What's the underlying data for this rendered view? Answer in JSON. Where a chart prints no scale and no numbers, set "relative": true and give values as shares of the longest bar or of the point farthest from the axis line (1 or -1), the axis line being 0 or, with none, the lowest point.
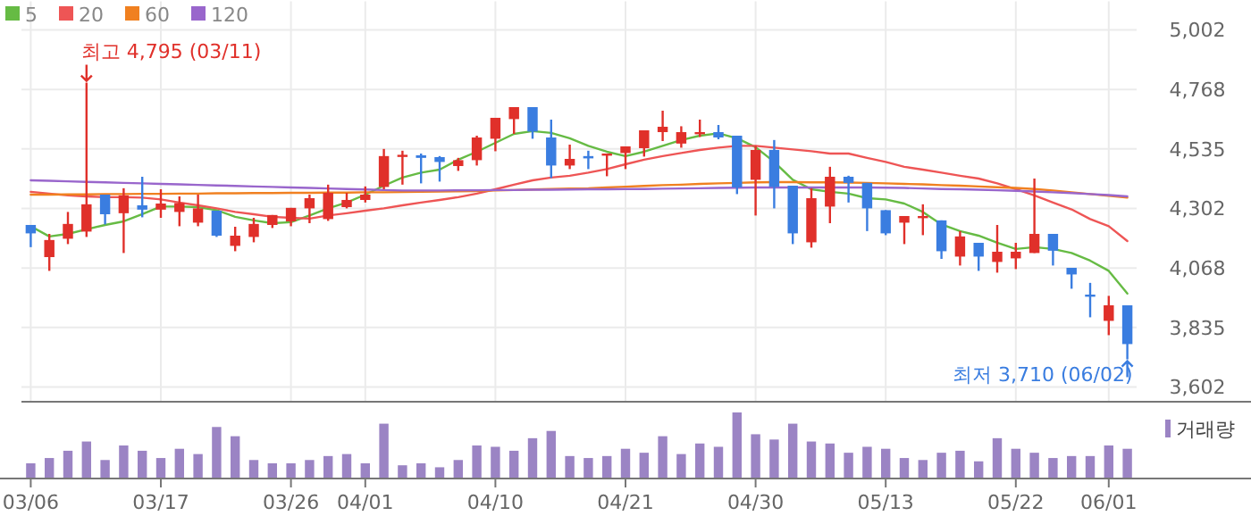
{
  "chart_data": [
    {
      "type": "candlestick",
      "categories": [
        null,
        null,
        null,
        null,
        null,
        null,
        null,
        null,
        null,
        null,
        null,
        null,
        null,
        null,
        null,
        null,
        null,
        null,
        null,
        null,
        null,
        null,
        null,
        null,
        null,
        null,
        null,
        null,
        null,
        null,
        null,
        null,
        null,
        null,
        null,
        null,
        null,
        null,
        null,
        null,
        null,
        null,
        null,
        null,
        null,
        null,
        null,
        null,
        null,
        null,
        null,
        null,
        null,
        null,
        null,
        null,
        null,
        null,
        null,
        null
      ],
      "ohlc": [
        [
          4237,
          4237,
          4150,
          4204
        ],
        [
          4111,
          4202,
          4057,
          4178
        ],
        [
          4183,
          4288,
          4162,
          4241
        ],
        [
          4211,
          4795,
          4190,
          4318
        ],
        [
          4356,
          4356,
          4239,
          4279
        ],
        [
          4283,
          4381,
          4127,
          4353
        ],
        [
          4314,
          4426,
          4267,
          4297
        ],
        [
          4297,
          4377,
          4265,
          4321
        ],
        [
          4288,
          4349,
          4232,
          4323
        ],
        [
          4246,
          4356,
          4232,
          4302
        ],
        [
          4293,
          4293,
          4190,
          4195
        ],
        [
          4155,
          4230,
          4134,
          4195
        ],
        [
          4190,
          4265,
          4169,
          4241
        ],
        [
          4237,
          4276,
          4225,
          4276
        ],
        [
          4251,
          4304,
          4232,
          4304
        ],
        [
          4302,
          4356,
          4244,
          4342
        ],
        [
          4260,
          4395,
          4253,
          4363
        ],
        [
          4307,
          4363,
          4302,
          4335
        ],
        [
          4335,
          4388,
          4325,
          4356
        ],
        [
          4386,
          4535,
          4377,
          4507
        ],
        [
          4507,
          4528,
          4395,
          4512
        ],
        [
          4510,
          4517,
          4400,
          4500
        ],
        [
          4503,
          4507,
          4407,
          4484
        ],
        [
          4468,
          4500,
          4449,
          4491
        ],
        [
          4491,
          4587,
          4470,
          4580
        ],
        [
          4575,
          4657,
          4526,
          4657
        ],
        [
          4652,
          4699,
          4594,
          4699
        ],
        [
          4699,
          4699,
          4575,
          4603
        ],
        [
          4580,
          4650,
          4421,
          4470
        ],
        [
          4470,
          4552,
          4456,
          4496
        ],
        [
          4507,
          4528,
          4456,
          4498
        ],
        [
          4512,
          4517,
          4428,
          4517
        ],
        [
          4519,
          4545,
          4456,
          4545
        ],
        [
          4538,
          4608,
          4505,
          4608
        ],
        [
          4601,
          4685,
          4566,
          4622
        ],
        [
          4556,
          4624,
          4540,
          4601
        ],
        [
          4594,
          4650,
          4582,
          4601
        ],
        [
          4601,
          4629,
          4573,
          4580
        ],
        [
          4587,
          4587,
          4358,
          4384
        ],
        [
          4414,
          4547,
          4274,
          4531
        ],
        [
          4531,
          4570,
          4302,
          4386
        ],
        [
          4391,
          4391,
          4162,
          4204
        ],
        [
          4169,
          4381,
          4148,
          4342
        ],
        [
          4309,
          4465,
          4244,
          4426
        ],
        [
          4426,
          4430,
          4325,
          4402
        ],
        [
          4402,
          4402,
          4213,
          4302
        ],
        [
          4295,
          4295,
          4197,
          4204
        ],
        [
          4246,
          4272,
          4162,
          4272
        ],
        [
          4267,
          4318,
          4197,
          4272
        ],
        [
          4255,
          4255,
          4104,
          4134
        ],
        [
          4113,
          4213,
          4078,
          4192
        ],
        [
          4167,
          4167,
          4057,
          4113
        ],
        [
          4092,
          4237,
          4050,
          4132
        ],
        [
          4106,
          4167,
          4064,
          4132
        ],
        [
          4127,
          4419,
          4127,
          4202
        ],
        [
          4202,
          4202,
          4078,
          4136
        ],
        [
          4069,
          4069,
          3987,
          4043
        ],
        [
          3964,
          4010,
          3875,
          3957
        ],
        [
          3861,
          3959,
          3805,
          3922
        ],
        [
          3922,
          3922,
          3710,
          3770
        ]
      ],
      "colors": [
        "#3a7de0",
        "#e0302a",
        "#e0302a",
        "#e0302a",
        "#3a7de0",
        "#e0302a",
        "#3a7de0",
        "#e0302a",
        "#e0302a",
        "#e0302a",
        "#3a7de0",
        "#e0302a",
        "#e0302a",
        "#e0302a",
        "#e0302a",
        "#e0302a",
        "#e0302a",
        "#e0302a",
        "#e0302a",
        "#e0302a",
        "#e0302a",
        "#3a7de0",
        "#3a7de0",
        "#e0302a",
        "#e0302a",
        "#e0302a",
        "#e0302a",
        "#3a7de0",
        "#3a7de0",
        "#e0302a",
        "#3a7de0",
        "#e0302a",
        "#e0302a",
        "#e0302a",
        "#e0302a",
        "#e0302a",
        "#e0302a",
        "#3a7de0",
        "#3a7de0",
        "#e0302a",
        "#3a7de0",
        "#3a7de0",
        "#e0302a",
        "#e0302a",
        "#3a7de0",
        "#3a7de0",
        "#3a7de0",
        "#e0302a",
        "#e0302a",
        "#3a7de0",
        "#e0302a",
        "#3a7de0",
        "#e0302a",
        "#e0302a",
        "#e0302a",
        "#3a7de0",
        "#3a7de0",
        "#3a7de0",
        "#e0302a",
        "#3a7de0"
      ],
      "series": [
        {
          "name": "5",
          "type": "line",
          "color": "#66bb44",
          "values": [
            4232,
            4192,
            4202,
            4220,
            4237,
            4251,
            4279,
            4309,
            4309,
            4307,
            4295,
            4269,
            4255,
            4244,
            4248,
            4274,
            4302,
            4325,
            4356,
            4391,
            4423,
            4442,
            4454,
            4493,
            4524,
            4559,
            4594,
            4605,
            4598,
            4577,
            4547,
            4524,
            4507,
            4524,
            4547,
            4570,
            4587,
            4596,
            4577,
            4542,
            4484,
            4414,
            4377,
            4367,
            4360,
            4342,
            4337,
            4321,
            4288,
            4239,
            4213,
            4195,
            4167,
            4143,
            4150,
            4143,
            4127,
            4097,
            4057,
            3968
          ]
        },
        {
          "name": "20",
          "type": "line",
          "color": "#ee5555",
          "values": [
            4367,
            4360,
            4353,
            4349,
            4346,
            4346,
            4344,
            4337,
            4325,
            4314,
            4302,
            4288,
            4279,
            4269,
            4265,
            4262,
            4274,
            4283,
            4293,
            4302,
            4314,
            4325,
            4335,
            4346,
            4360,
            4377,
            4395,
            4412,
            4423,
            4430,
            4442,
            4456,
            4475,
            4493,
            4507,
            4519,
            4531,
            4540,
            4547,
            4547,
            4540,
            4533,
            4526,
            4517,
            4517,
            4500,
            4484,
            4465,
            4454,
            4442,
            4430,
            4419,
            4400,
            4377,
            4353,
            4325,
            4298,
            4260,
            4232,
            4174
          ]
        },
        {
          "name": "60",
          "type": "line",
          "color": "#f08020",
          "values": [
            4356,
            4356,
            4357,
            4357,
            4358,
            4358,
            4359,
            4359,
            4360,
            4360,
            4361,
            4361,
            4362,
            4362,
            4363,
            4363,
            4364,
            4364,
            4365,
            4365,
            4366,
            4367,
            4368,
            4369,
            4370,
            4372,
            4374,
            4376,
            4378,
            4380,
            4381,
            4384,
            4387,
            4390,
            4393,
            4395,
            4398,
            4400,
            4402,
            4404,
            4405,
            4405,
            4404,
            4404,
            4403,
            4402,
            4400,
            4398,
            4396,
            4393,
            4391,
            4388,
            4385,
            4382,
            4378,
            4372,
            4365,
            4358,
            4351,
            4344
          ]
        },
        {
          "name": "120",
          "type": "line",
          "color": "#9966cc",
          "values": [
            4412,
            4410,
            4408,
            4406,
            4404,
            4402,
            4400,
            4398,
            4396,
            4394,
            4392,
            4390,
            4388,
            4386,
            4384,
            4382,
            4380,
            4378,
            4376,
            4374,
            4372,
            4372,
            4372,
            4373,
            4373,
            4374,
            4374,
            4375,
            4375,
            4376,
            4377,
            4377,
            4378,
            4378,
            4379,
            4380,
            4381,
            4382,
            4383,
            4384,
            4384,
            4384,
            4384,
            4384,
            4384,
            4384,
            4383,
            4382,
            4380,
            4378,
            4377,
            4375,
            4373,
            4371,
            4368,
            4365,
            4362,
            4358,
            4354,
            4349
          ]
        }
      ],
      "ylim": [
        3544,
        5002
      ],
      "yticks": [
        {
          "value": 3602,
          "label": "3,602"
        },
        {
          "value": 3835,
          "label": "3,835"
        },
        {
          "value": 4068,
          "label": "4,068"
        },
        {
          "value": 4302,
          "label": "4,302"
        },
        {
          "value": 4535,
          "label": "4,535"
        },
        {
          "value": 4768,
          "label": "4,768"
        },
        {
          "value": 5002,
          "label": "5,002"
        }
      ],
      "annotations": [
        "최고 4,795 (03/11)",
        "최저 3,710 (06/02)"
      ],
      "grid": "y",
      "legend": "top left",
      "tick_labels": "y"
    },
    {
      "type": "bar",
      "categories": [
        "03/06",
        null,
        null,
        null,
        null,
        null,
        null,
        "03/17",
        null,
        null,
        null,
        null,
        null,
        null,
        "03/26",
        null,
        null,
        null,
        "04/01",
        null,
        null,
        null,
        null,
        null,
        null,
        "04/10",
        null,
        null,
        null,
        null,
        null,
        null,
        "04/21",
        null,
        null,
        null,
        null,
        null,
        null,
        "04/30",
        null,
        null,
        null,
        null,
        null,
        null,
        "05/13",
        null,
        null,
        null,
        null,
        null,
        null,
        "05/22",
        null,
        null,
        null,
        null,
        "06/01",
        null
      ],
      "relative": true,
      "grid": "x",
      "series": [
        {
          "name": "거래량",
          "color": "#9b84c4",
          "values": [
            0.23,
            0.31,
            0.42,
            0.56,
            0.28,
            0.5,
            0.42,
            0.31,
            0.45,
            0.37,
            0.78,
            0.64,
            0.28,
            0.23,
            0.23,
            0.28,
            0.34,
            0.37,
            0.23,
            0.83,
            0.2,
            0.23,
            0.17,
            0.28,
            0.5,
            0.48,
            0.42,
            0.61,
            0.72,
            0.34,
            0.31,
            0.34,
            0.45,
            0.39,
            0.64,
            0.37,
            0.53,
            0.48,
            1,
            0.67,
            0.59,
            0.83,
            0.56,
            0.53,
            0.39,
            0.48,
            0.45,
            0.31,
            0.28,
            0.39,
            0.42,
            0.26,
            0.61,
            0.45,
            0.39,
            0.31,
            0.34,
            0.34,
            0.5,
            0.45
          ]
        }
      ],
      "legend": "top right",
      "tick_labels": "x"
    }
  ]
}
